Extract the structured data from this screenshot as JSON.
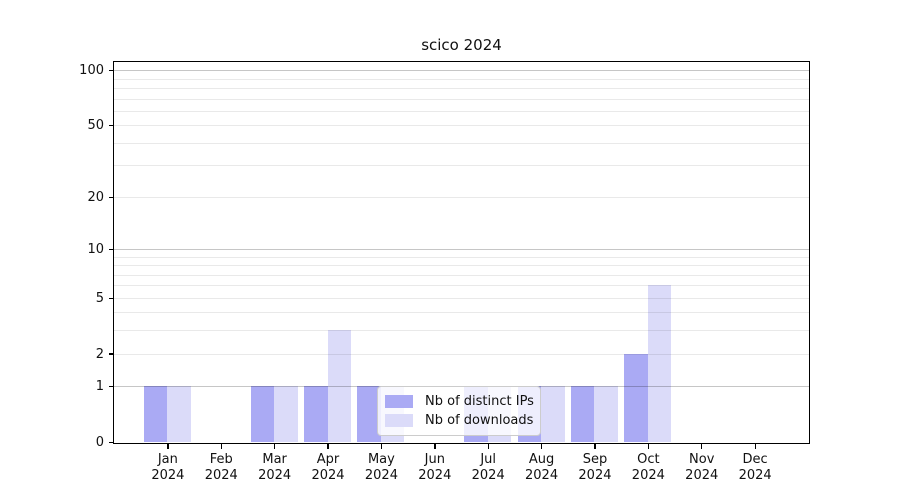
{
  "chart_data": {
    "type": "bar",
    "title": "scico 2024",
    "categories": [
      "Jan 2024",
      "Feb 2024",
      "Mar 2024",
      "Apr 2024",
      "May 2024",
      "Jun 2024",
      "Jul 2024",
      "Aug 2024",
      "Sep 2024",
      "Oct 2024",
      "Nov 2024",
      "Dec 2024"
    ],
    "series": [
      {
        "name": "Nb of distinct IPs",
        "color": "#aaaaf4",
        "values": [
          1,
          0,
          1,
          1,
          1,
          0,
          1,
          1,
          1,
          2,
          0,
          0
        ]
      },
      {
        "name": "Nb of downloads",
        "color": "#dbdbf9",
        "values": [
          1,
          0,
          1,
          3,
          1,
          0,
          1,
          1,
          1,
          6,
          0,
          0
        ]
      }
    ],
    "yscale": "log1p",
    "ylim": [
      0,
      113
    ],
    "xlabel": "",
    "ylabel": "",
    "grid": true,
    "y_tick_values": [
      0,
      1,
      2,
      5,
      10,
      20,
      50,
      100
    ],
    "y_tick_labels": [
      "0",
      "1",
      "2",
      "5",
      "10",
      "20",
      "50",
      "100"
    ],
    "y_gridlines_major": [
      1,
      10,
      100
    ],
    "y_gridlines_minor": [
      2,
      3,
      4,
      5,
      6,
      7,
      8,
      9,
      20,
      30,
      40,
      50,
      60,
      70,
      80,
      90
    ],
    "legend_position": "lower center",
    "style": {
      "grid_major_color": "#c6c6c6",
      "grid_minor_color": "#e8e8e8",
      "spine_color": "#000000",
      "legend_border_color": "#cccccc"
    }
  }
}
